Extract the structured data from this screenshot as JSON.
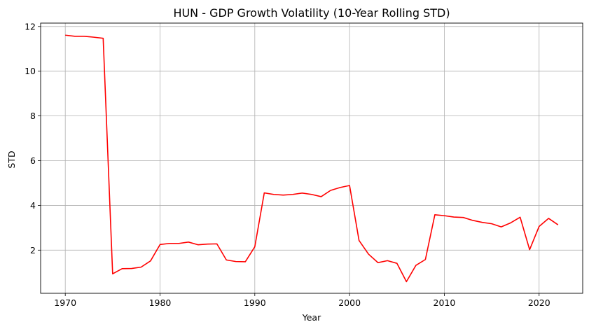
{
  "chart_data": {
    "type": "line",
    "title": "HUN - GDP Growth Volatility (10-Year Rolling STD)",
    "xlabel": "Year",
    "ylabel": "STD",
    "xlim": [
      1967.4,
      2024.6
    ],
    "ylim": [
      0.07,
      12.15
    ],
    "xticks": [
      1970,
      1980,
      1990,
      2000,
      2010,
      2020
    ],
    "yticks": [
      2,
      4,
      6,
      8,
      10,
      12
    ],
    "grid": true,
    "legend": "none",
    "series": [
      {
        "color": "#ff0000",
        "x": [
          1970,
          1971,
          1972,
          1973,
          1974,
          1975,
          1976,
          1977,
          1978,
          1979,
          1980,
          1981,
          1982,
          1983,
          1984,
          1985,
          1986,
          1987,
          1988,
          1989,
          1990,
          1991,
          1992,
          1993,
          1994,
          1995,
          1996,
          1997,
          1998,
          1999,
          2000,
          2001,
          2002,
          2003,
          2004,
          2005,
          2006,
          2007,
          2008,
          2009,
          2010,
          2011,
          2012,
          2013,
          2014,
          2015,
          2016,
          2017,
          2018,
          2019,
          2020,
          2021,
          2022
        ],
        "values": [
          11.61,
          11.56,
          11.56,
          11.52,
          11.47,
          0.94,
          1.17,
          1.18,
          1.24,
          1.52,
          2.25,
          2.3,
          2.3,
          2.36,
          2.24,
          2.27,
          2.28,
          1.56,
          1.49,
          1.48,
          2.15,
          4.56,
          4.49,
          4.46,
          4.49,
          4.55,
          4.49,
          4.39,
          4.67,
          4.8,
          4.89,
          2.43,
          1.82,
          1.44,
          1.53,
          1.41,
          0.59,
          1.32,
          1.58,
          3.58,
          3.54,
          3.48,
          3.46,
          3.33,
          3.24,
          3.18,
          3.04,
          3.22,
          3.47,
          2.02,
          3.06,
          3.42,
          3.13
        ]
      }
    ]
  }
}
